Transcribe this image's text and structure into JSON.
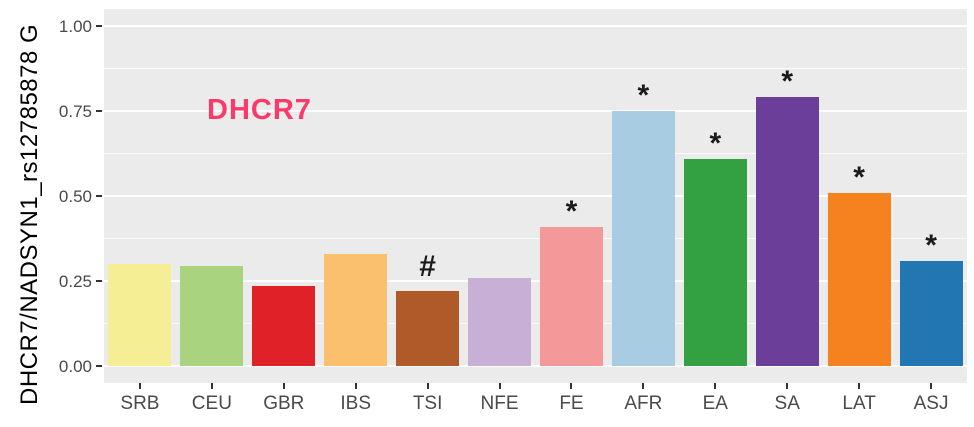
{
  "figure": {
    "gene_label": "DHCR7",
    "gene_label_color": "#FA3A6B",
    "background_color": "#FFFFFF"
  },
  "chart_data": {
    "type": "bar",
    "title": "",
    "xlabel": "",
    "ylabel": "DHCR7/NADSYN1_rs12785878 G",
    "ylim": [
      0,
      1.0
    ],
    "grid": "major and minor horizontal white gridlines on gray panel",
    "legend": "none",
    "panel_bg": "#EBEBEB",
    "gridline_color": "#FFFFFF",
    "tick_text_color": "#4A4A4A",
    "categories": [
      "SRB",
      "CEU",
      "GBR",
      "IBS",
      "TSI",
      "NFE",
      "FE",
      "AFR",
      "EA",
      "SA",
      "LAT",
      "ASJ"
    ],
    "values": [
      0.3,
      0.295,
      0.235,
      0.33,
      0.22,
      0.26,
      0.41,
      0.75,
      0.61,
      0.79,
      0.51,
      0.31
    ],
    "colors": [
      "#F5EE94",
      "#A9D37E",
      "#E02127",
      "#FAC06E",
      "#AF5A28",
      "#C7AFD6",
      "#F59899",
      "#A8CCE2",
      "#33A041",
      "#6A3E99",
      "#F5821F",
      "#2277B2"
    ],
    "annotations": [
      "",
      "",
      "",
      "",
      "#",
      "",
      "*",
      "*",
      "*",
      "*",
      "*",
      "*"
    ],
    "y_axis": {
      "ticks": [
        {
          "value": 0.0,
          "label": "0.00"
        },
        {
          "value": 0.25,
          "label": "0.25"
        },
        {
          "value": 0.5,
          "label": "0.50"
        },
        {
          "value": 0.75,
          "label": "0.75"
        },
        {
          "value": 1.0,
          "label": "1.00"
        }
      ],
      "minor_ticks": [
        0.125,
        0.375,
        0.625,
        0.875
      ]
    }
  }
}
